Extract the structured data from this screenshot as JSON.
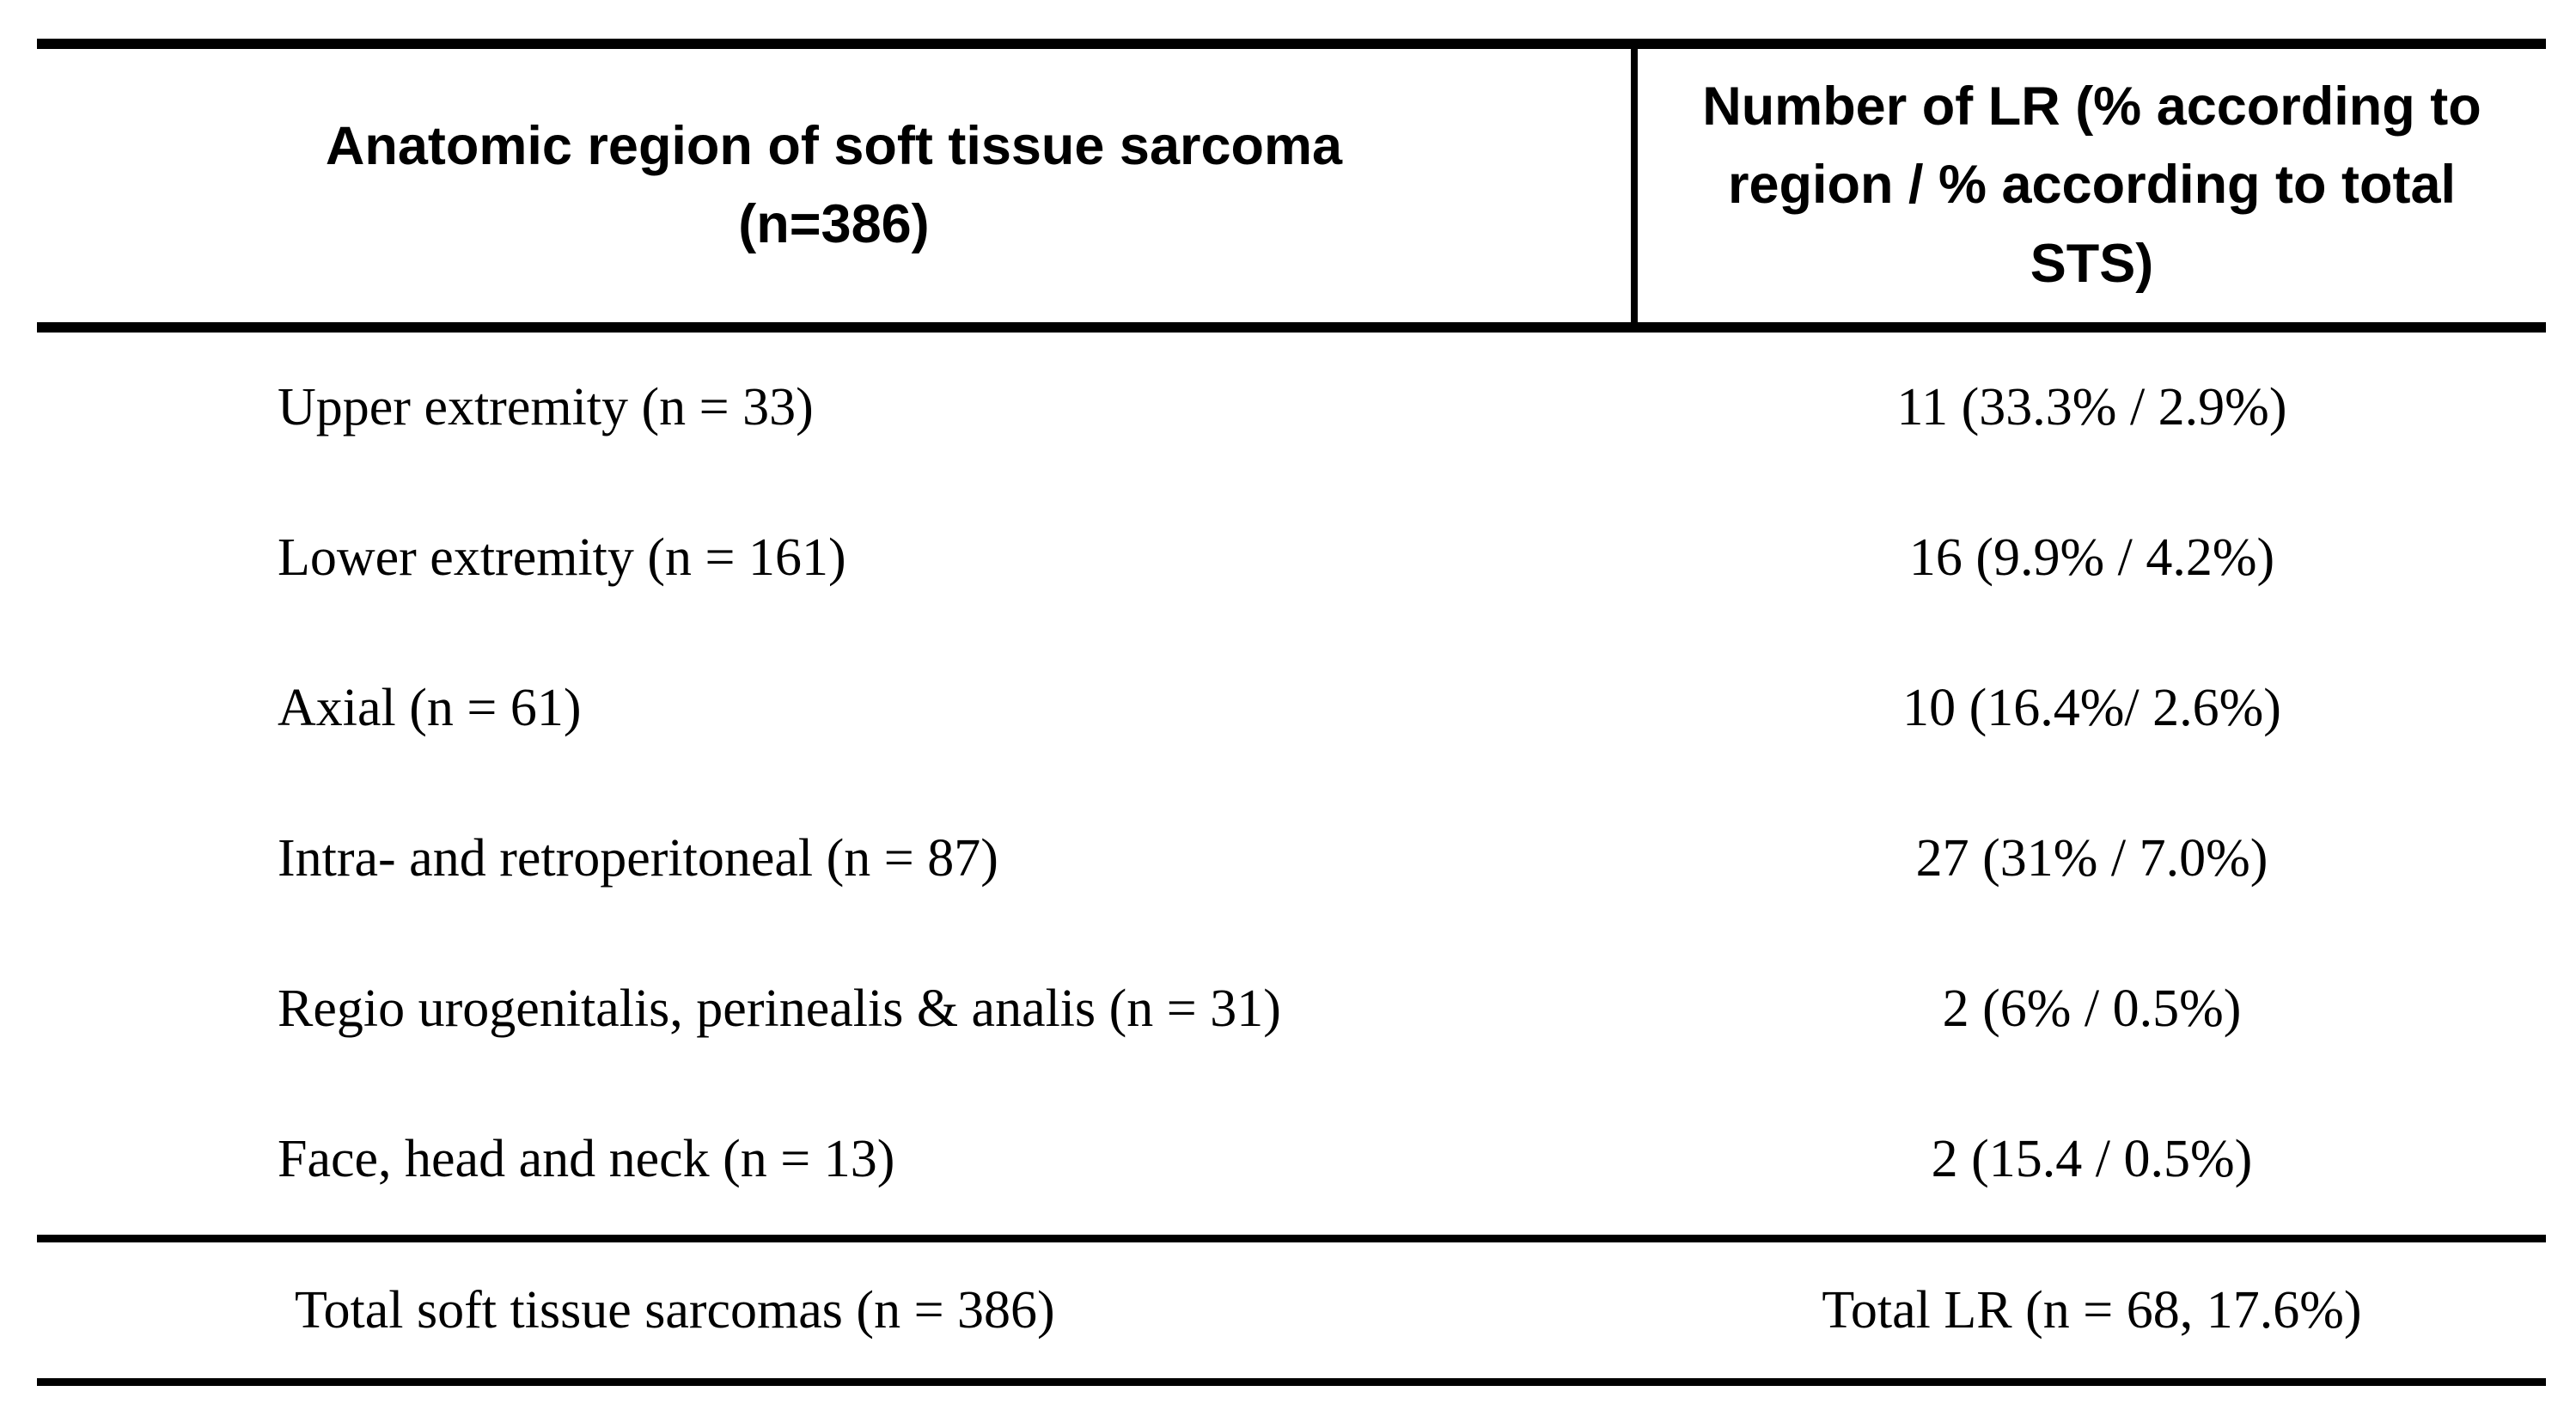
{
  "table": {
    "columns": [
      {
        "label": "Anatomic region of soft tissue sarcoma\n(n=386)"
      },
      {
        "label": "Number of LR (% according to region / % according to total STS)"
      }
    ],
    "rows": [
      {
        "region": "Upper extremity (n = 33)",
        "lr": "11 (33.3% / 2.9%)"
      },
      {
        "region": "Lower extremity (n = 161)",
        "lr": "16 (9.9% / 4.2%)"
      },
      {
        "region": "Axial (n = 61)",
        "lr": "10 (16.4%/ 2.6%)"
      },
      {
        "region": "Intra- and retroperitoneal (n = 87)",
        "lr": "27 (31% / 7.0%)"
      },
      {
        "region": "Regio urogenitalis, perinealis & analis (n = 31)",
        "lr": "2 (6% / 0.5%)"
      },
      {
        "region": "Face, head and neck (n = 13)",
        "lr": "2 (15.4 / 0.5%)"
      }
    ],
    "total_row": {
      "region": "Total soft tissue sarcomas (n = 386)",
      "lr": "Total LR (n = 68, 17.6%)"
    }
  },
  "colors": {
    "text": "#000000",
    "background": "#ffffff",
    "rule": "#000000"
  }
}
